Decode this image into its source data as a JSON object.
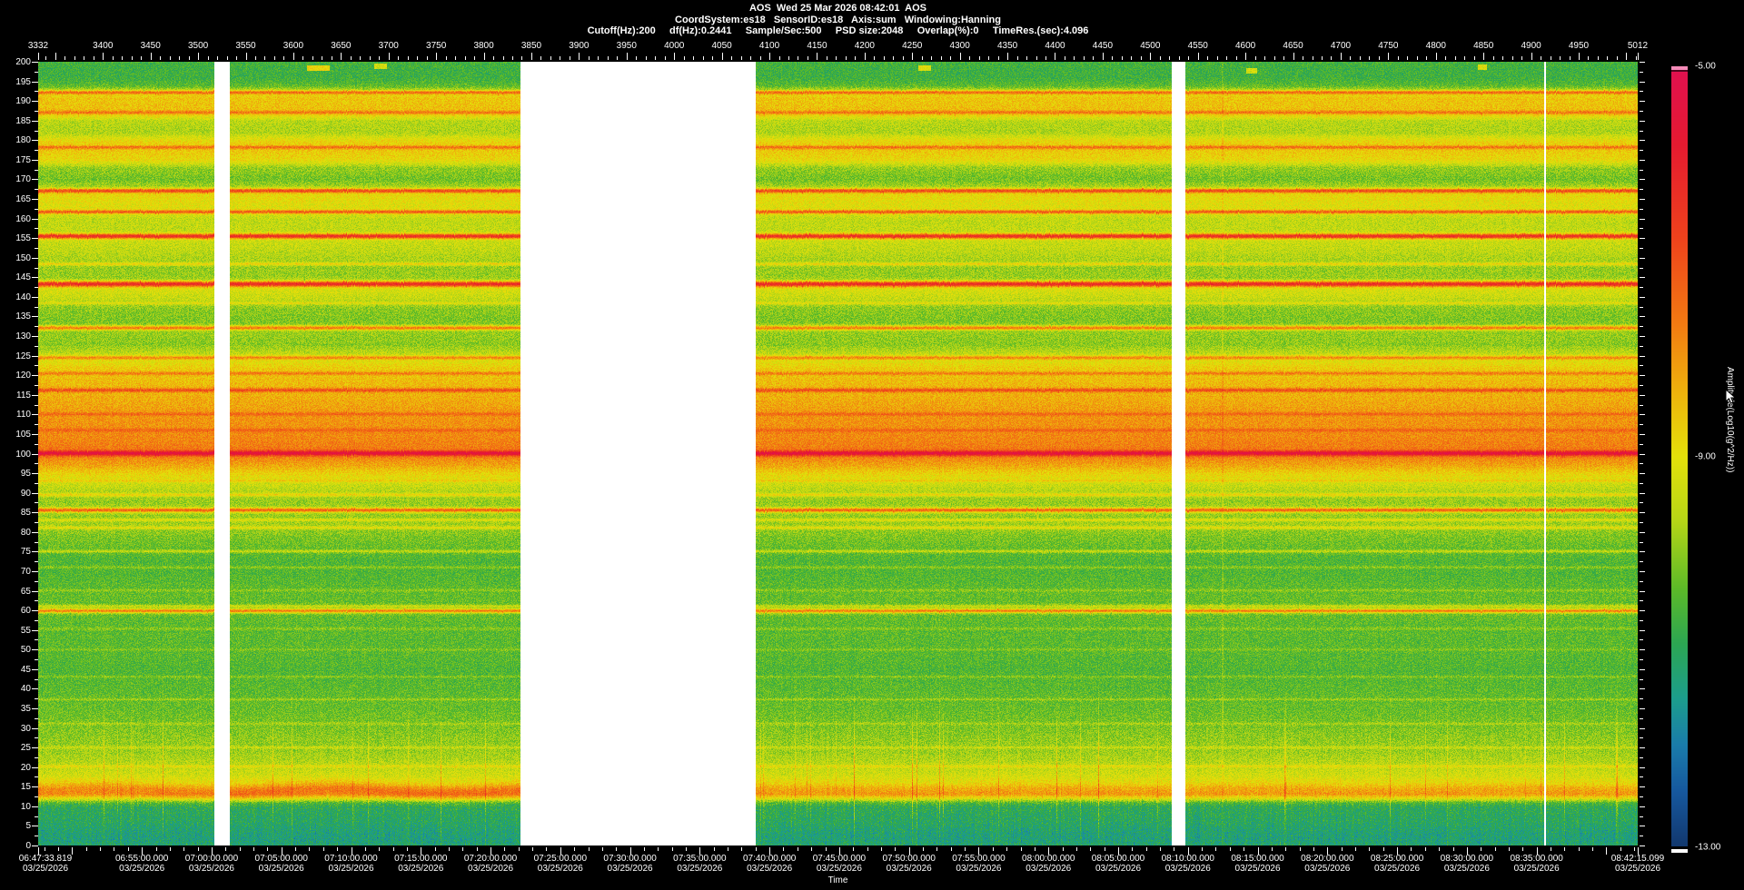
{
  "header": {
    "line1": "AOS  Wed 25 Mar 2026 08:42:01  AOS",
    "line2": "CoordSystem:es18   SensorID:es18   Axis:sum   Windowing:Hanning",
    "line3": "Cutoff(Hz):200     df(Hz):0.2441     Sample/Sec:500     PSD size:2048     Overlap(%):0     TimeRes.(sec):4.096"
  },
  "chart_data": {
    "type": "heatmap",
    "subtype": "spectrogram",
    "title": "AOS  Wed 25 Mar 2026 08:42:01  AOS",
    "top_axis": {
      "min": 3332,
      "max": 5012,
      "ticks": [
        3332,
        3400,
        3450,
        3500,
        3550,
        3600,
        3650,
        3700,
        3750,
        3800,
        3850,
        3900,
        3950,
        4000,
        4050,
        4100,
        4150,
        4200,
        4250,
        4300,
        4350,
        4400,
        4450,
        4500,
        4550,
        4600,
        4650,
        4700,
        4750,
        4800,
        4850,
        4900,
        4950,
        5012
      ],
      "minor_step": 10
    },
    "freq_axis": {
      "min": 0,
      "max": 200,
      "unit": "Hz",
      "minor_step": 2.5,
      "ticks": [
        200,
        195,
        190,
        185,
        180,
        175,
        170,
        165,
        160,
        155,
        150,
        145,
        140,
        135,
        130,
        125,
        120,
        115,
        110,
        105,
        100,
        95,
        90,
        85,
        80,
        75,
        70,
        65,
        60,
        55,
        50,
        45,
        40,
        35,
        30,
        25,
        20,
        15,
        10,
        5,
        0
      ]
    },
    "time_axis": {
      "title": "Time",
      "date": "03/25/2026",
      "start": "06:47:33.819",
      "end": "08:42:15.099",
      "labels": [
        "06:47:33.819",
        "06:55:00.000",
        "07:00:00.000",
        "07:05:00.000",
        "07:10:00.000",
        "07:15:00.000",
        "07:20:00.000",
        "07:25:00.000",
        "07:30:00.000",
        "07:35:00.000",
        "07:40:00.000",
        "07:45:00.000",
        "07:50:00.000",
        "07:55:00.000",
        "08:00:00.000",
        "08:05:00.000",
        "08:10:00.000",
        "08:15:00.000",
        "08:20:00.000",
        "08:25:00.000",
        "08:30:00.000",
        "08:35:00.000",
        "08:42:15.099"
      ],
      "minor_tick_sec": 60,
      "major_tick_sec": 300
    },
    "colorbar": {
      "label": "Amplitude(Log10(g^2/Hz))",
      "ticks": [
        "-5.00",
        "-9.00",
        "-13.00"
      ],
      "vmax": -5,
      "vmin": -13,
      "cap_color": "#f58ab8",
      "stops": [
        [
          0.0,
          224,
          16,
          80
        ],
        [
          0.1,
          229,
          26,
          48
        ],
        [
          0.22,
          238,
          66,
          28
        ],
        [
          0.33,
          242,
          122,
          18
        ],
        [
          0.42,
          238,
          180,
          12
        ],
        [
          0.5,
          228,
          224,
          10
        ],
        [
          0.58,
          184,
          214,
          22
        ],
        [
          0.67,
          92,
          186,
          40
        ],
        [
          0.74,
          44,
          166,
          82
        ],
        [
          0.81,
          28,
          158,
          140
        ],
        [
          0.87,
          26,
          124,
          170
        ],
        [
          0.93,
          22,
          88,
          158
        ],
        [
          1.0,
          18,
          56,
          110
        ]
      ]
    },
    "data_gaps": [
      {
        "x0": 0.1102,
        "x1": 0.1198,
        "t0": "07:00:12",
        "t1": "07:01:18"
      },
      {
        "x0": 0.3015,
        "x1": 0.4486,
        "t0": "07:22:08",
        "t1": "07:39:00"
      },
      {
        "x0": 0.7087,
        "x1": 0.7172,
        "t0": "08:08:51",
        "t1": "08:09:50"
      }
    ],
    "white_line_x": 0.9415,
    "artifact_line_x": 0.7399,
    "segments": [
      {
        "x0": 0.0,
        "x1": 0.1102,
        "band_amp": 0.5,
        "spike_p": 0.02
      },
      {
        "x0": 0.1198,
        "x1": 0.3015,
        "band_amp": 0.8,
        "spike_p": 0.02
      },
      {
        "x0": 0.4486,
        "x1": 0.7087,
        "band_amp": 0.15,
        "spike_p": 0.035
      },
      {
        "x0": 0.7172,
        "x1": 1.0,
        "band_amp": 0.15,
        "spike_p": 0.035
      }
    ],
    "profile_points": [
      [
        200,
        -10.65
      ],
      [
        196,
        -10.7
      ],
      [
        194,
        -10.4
      ],
      [
        191,
        -8.6
      ],
      [
        187,
        -8.5
      ],
      [
        185,
        -9.6
      ],
      [
        182,
        -9.7
      ],
      [
        180,
        -8.9
      ],
      [
        178,
        -8.6
      ],
      [
        175,
        -8.9
      ],
      [
        173,
        -9.9
      ],
      [
        170,
        -10.2
      ],
      [
        168,
        -9.7
      ],
      [
        166,
        -8.9
      ],
      [
        163,
        -9.1
      ],
      [
        160,
        -9.5
      ],
      [
        158,
        -9.5
      ],
      [
        154,
        -9.4
      ],
      [
        151,
        -9.6
      ],
      [
        148,
        -9.9
      ],
      [
        145,
        -9.9
      ],
      [
        142,
        -9.2
      ],
      [
        140,
        -9.4
      ],
      [
        137,
        -10.0
      ],
      [
        134,
        -10.1
      ],
      [
        131,
        -9.9
      ],
      [
        128,
        -10.0
      ],
      [
        125,
        -9.4
      ],
      [
        122,
        -8.7
      ],
      [
        119,
        -8.5
      ],
      [
        116,
        -8.4
      ],
      [
        113,
        -8.2
      ],
      [
        110,
        -8.0
      ],
      [
        107,
        -7.9
      ],
      [
        104,
        -7.8
      ],
      [
        101,
        -7.6
      ],
      [
        99,
        -7.8
      ],
      [
        97,
        -8.2
      ],
      [
        95,
        -8.8
      ],
      [
        92,
        -9.4
      ],
      [
        90,
        -9.7
      ],
      [
        88,
        -9.9
      ],
      [
        86,
        -9.8
      ],
      [
        84,
        -9.9
      ],
      [
        82,
        -9.8
      ],
      [
        79,
        -10.1
      ],
      [
        76,
        -10.3
      ],
      [
        73,
        -10.5
      ],
      [
        70,
        -10.5
      ],
      [
        66,
        -10.4
      ],
      [
        63,
        -10.3
      ],
      [
        59,
        -10.3
      ],
      [
        55,
        -10.4
      ],
      [
        50,
        -10.4
      ],
      [
        45,
        -10.5
      ],
      [
        40,
        -10.4
      ],
      [
        35,
        -10.3
      ],
      [
        30,
        -10.1
      ],
      [
        27,
        -9.95
      ],
      [
        24,
        -9.85
      ],
      [
        21,
        -9.6
      ],
      [
        18,
        -9.3
      ],
      [
        16,
        -8.9
      ],
      [
        14.8,
        -8.4
      ],
      [
        13.2,
        -8.15
      ],
      [
        12.3,
        -8.9
      ],
      [
        11,
        -10.5
      ],
      [
        10,
        -10.9
      ],
      [
        8,
        -11.0
      ],
      [
        6,
        -11.05
      ],
      [
        4,
        -11.2
      ],
      [
        2,
        -11.3
      ],
      [
        0,
        -11.15
      ]
    ],
    "line_features": [
      [
        192.3,
        2.0,
        0.35
      ],
      [
        187.2,
        1.0,
        0.3
      ],
      [
        178.3,
        1.2,
        0.3
      ],
      [
        167.2,
        2.5,
        0.4
      ],
      [
        161.8,
        2.1,
        0.35
      ],
      [
        155.6,
        3.1,
        0.45
      ],
      [
        148.5,
        1.1,
        0.3
      ],
      [
        143.4,
        3.3,
        0.5
      ],
      [
        138.5,
        0.7,
        0.25
      ],
      [
        132.2,
        2.3,
        0.4
      ],
      [
        124.6,
        1.5,
        0.35
      ],
      [
        120.6,
        1.0,
        0.3
      ],
      [
        116.3,
        1.5,
        0.35
      ],
      [
        110.2,
        0.7,
        0.3
      ],
      [
        106.1,
        0.6,
        0.3
      ],
      [
        100.2,
        2.3,
        0.45
      ],
      [
        93.2,
        0.5,
        0.25
      ],
      [
        89.6,
        1.0,
        0.3
      ],
      [
        85.7,
        2.5,
        0.4
      ],
      [
        83.2,
        0.8,
        0.25
      ],
      [
        81.2,
        0.9,
        0.28
      ],
      [
        75.2,
        0.9,
        0.28
      ],
      [
        71.1,
        0.5,
        0.25
      ],
      [
        65.2,
        0.45,
        0.25
      ],
      [
        61.2,
        0.9,
        0.28
      ],
      [
        60.0,
        2.6,
        0.4
      ],
      [
        55.4,
        0.4,
        0.25
      ],
      [
        50.1,
        0.35,
        0.22
      ],
      [
        43.2,
        0.45,
        0.22
      ],
      [
        37.4,
        0.5,
        0.22
      ],
      [
        31.2,
        0.45,
        0.22
      ],
      [
        25.1,
        0.5,
        0.25
      ],
      [
        20.3,
        0.6,
        0.25
      ]
    ],
    "top_dashes": [
      [
        0.168,
        0.182,
        198.4,
        1.8
      ],
      [
        0.21,
        0.218,
        199.0,
        1.4
      ],
      [
        0.55,
        0.558,
        198.6,
        1.6
      ],
      [
        0.755,
        0.762,
        197.9,
        1.4
      ],
      [
        0.9,
        0.906,
        198.7,
        1.5
      ]
    ],
    "grid": false,
    "legend_position": "right-colorbar"
  }
}
